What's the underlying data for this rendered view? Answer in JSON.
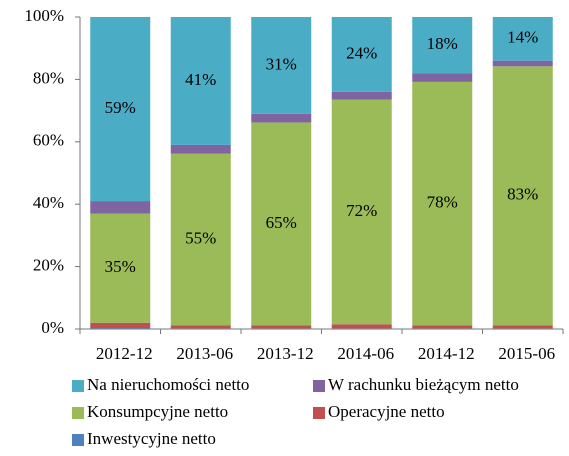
{
  "chart_data": {
    "type": "stacked_bar_percent",
    "categories": [
      "2012-12",
      "2013-06",
      "2013-12",
      "2014-06",
      "2014-12",
      "2015-06"
    ],
    "series": [
      {
        "name": "Na nieruchomości netto",
        "color": "#4bacc6",
        "values": [
          59,
          41,
          31,
          24,
          18,
          14
        ],
        "value_labels": [
          "59%",
          "41%",
          "31%",
          "24%",
          "18%",
          "14%"
        ]
      },
      {
        "name": "W rachunku bieżącym netto",
        "color": "#8064a2",
        "values": [
          4,
          2.8,
          2.8,
          2.5,
          2.8,
          1.8
        ]
      },
      {
        "name": "Konsumpcyjne netto",
        "color": "#9bbb59",
        "values": [
          35,
          55,
          65,
          72,
          78,
          83
        ],
        "value_labels": [
          "35%",
          "55%",
          "65%",
          "72%",
          "78%",
          "83%"
        ]
      },
      {
        "name": "Operacyjne netto",
        "color": "#c0504d",
        "values": [
          1.7,
          1,
          1,
          1.3,
          1,
          1
        ]
      },
      {
        "name": "Inwestycyjne netto",
        "color": "#4f81bd",
        "values": [
          0.3,
          0.2,
          0.2,
          0.2,
          0.2,
          0.2
        ]
      }
    ],
    "ylim": [
      0,
      100
    ],
    "yticks": [
      {
        "value": 0,
        "label": "0%"
      },
      {
        "value": 20,
        "label": "20%"
      },
      {
        "value": 40,
        "label": "40%"
      },
      {
        "value": 60,
        "label": "60%"
      },
      {
        "value": 80,
        "label": "80%"
      },
      {
        "value": 100,
        "label": "100%"
      }
    ],
    "grid": false
  }
}
